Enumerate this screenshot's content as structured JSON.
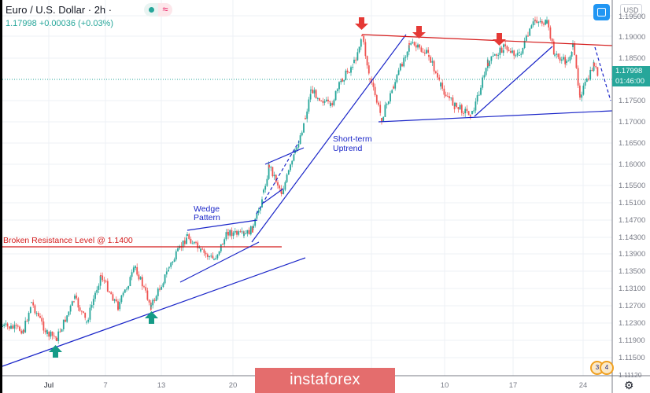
{
  "header": {
    "title": "Euro / U.S. Dollar · 2h ·",
    "quote": "1.17998  +0.00036 (+0.03%)",
    "status_dot": "market-open-dot",
    "wave_icon": "≈",
    "currency": "USD"
  },
  "price_axis": {
    "labels": [
      "1.19500",
      "1.19000",
      "1.18500",
      "1.17500",
      "1.17000",
      "1.16500",
      "1.16000",
      "1.15500",
      "1.15100",
      "1.14700",
      "1.14300",
      "1.13900",
      "1.13500",
      "1.13100",
      "1.12700",
      "1.12300",
      "1.11900",
      "1.11500",
      "1.11120"
    ],
    "current_price": "1.17998",
    "countdown": "01:46:00"
  },
  "time_axis": {
    "labels": [
      "Jul",
      "7",
      "13",
      "20",
      "10",
      "17",
      "24"
    ]
  },
  "annotations": {
    "resistance": "Broken Resistance Level @ 1.1400",
    "wedge_line1": "Wedge",
    "wedge_line2": "Pattern",
    "uptrend_line1": "Short-term",
    "uptrend_line2": "Uptrend"
  },
  "watermark": "instaforex",
  "events": [
    "3",
    "4"
  ],
  "colors": {
    "up": "#26a69a",
    "down": "#ef5350",
    "trendline": "#1a25c8",
    "resistance": "#d41a1a",
    "arrow_up": "#159b87",
    "arrow_down": "#e53935"
  },
  "chart_data": {
    "type": "candlestick",
    "title": "Euro / U.S. Dollar · 2h",
    "symbol": "EURUSD",
    "timeframe": "2h",
    "last": 1.17998,
    "change": 0.00036,
    "change_pct": 0.03,
    "x_ticks": [
      "Jul",
      "7",
      "13",
      "20",
      "10",
      "17",
      "24"
    ],
    "ylim": [
      1.1112,
      1.1965
    ],
    "y_ticks": [
      1.1112,
      1.115,
      1.119,
      1.123,
      1.127,
      1.131,
      1.135,
      1.139,
      1.143,
      1.147,
      1.151,
      1.155,
      1.16,
      1.165,
      1.17,
      1.175,
      1.185,
      1.19,
      1.195
    ],
    "approx_path": [
      {
        "x": "Jul start",
        "close": 1.122
      },
      {
        "x": "Jul 1",
        "close": 1.119
      },
      {
        "x": "Jul 7",
        "close": 1.127
      },
      {
        "x": "Jul 10",
        "close": 1.125
      },
      {
        "x": "Jul 13",
        "close": 1.13
      },
      {
        "x": "Jul 16",
        "close": 1.144
      },
      {
        "x": "Jul 20",
        "close": 1.146
      },
      {
        "x": "Jul 22",
        "close": 1.16
      },
      {
        "x": "Jul 24",
        "close": 1.167
      },
      {
        "x": "Jul 27",
        "close": 1.175
      },
      {
        "x": "Jul 31",
        "close": 1.19
      },
      {
        "x": "Aug 3",
        "close": 1.17
      },
      {
        "x": "Aug 6",
        "close": 1.188
      },
      {
        "x": "Aug 10",
        "close": 1.178
      },
      {
        "x": "Aug 13",
        "close": 1.171
      },
      {
        "x": "Aug 17",
        "close": 1.186
      },
      {
        "x": "Aug 19",
        "close": 1.194
      },
      {
        "x": "Aug 21",
        "close": 1.18
      },
      {
        "x": "Aug 24",
        "close": 1.18
      }
    ],
    "annotations": [
      {
        "type": "hline",
        "label": "Broken Resistance Level @ 1.1400",
        "y": 1.14,
        "color": "red"
      },
      {
        "type": "text",
        "label": "Wedge Pattern"
      },
      {
        "type": "text",
        "label": "Short-term Uptrend"
      },
      {
        "type": "trendline",
        "label": "long-term support"
      },
      {
        "type": "channel",
        "label": "upper resistance ~1.190 descending"
      },
      {
        "type": "channel",
        "label": "lower support ~1.170 ascending"
      },
      {
        "type": "markers",
        "kind": "up-arrows",
        "count": 2
      },
      {
        "type": "markers",
        "kind": "down-arrows",
        "count": 3
      }
    ]
  }
}
